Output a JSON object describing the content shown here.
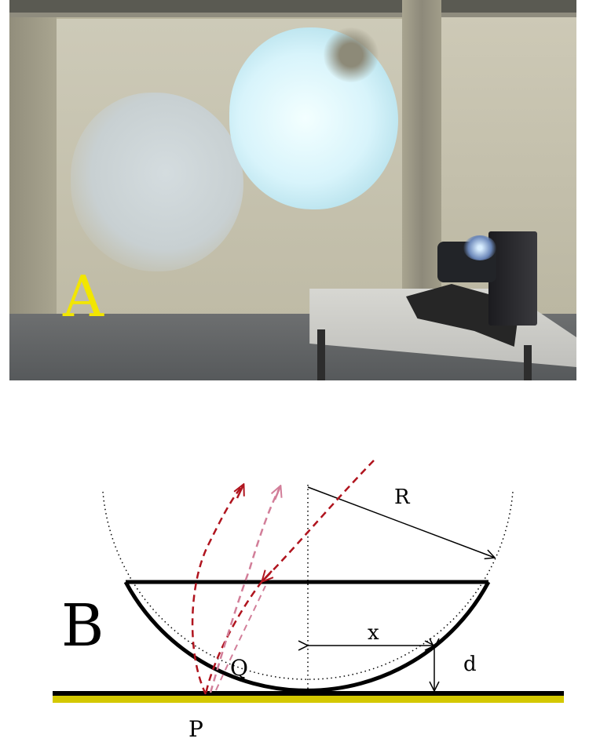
{
  "panel_a": {
    "label": "A"
  },
  "panel_b": {
    "label": "B",
    "labels": {
      "radius": "R",
      "point_p": "P",
      "point_q": "Q",
      "distance_x": "x",
      "depth_d": "d"
    }
  },
  "colors": {
    "label_a": "#f2e600",
    "ray_dark": "#b0141e",
    "ray_light": "#d27e99",
    "base_stripe": "#d4c800"
  }
}
